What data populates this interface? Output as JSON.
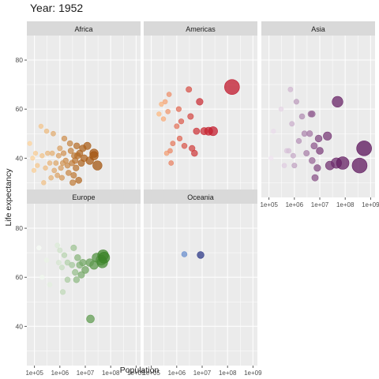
{
  "chart_data": {
    "type": "scatter",
    "title": "Year: 1952",
    "xlabel": "Population",
    "ylabel": "Life expectancy",
    "x_scale": "log10",
    "xlim": [
      50000,
      1500000000
    ],
    "ylim": [
      24,
      90
    ],
    "x_ticks": [
      100000,
      1000000,
      10000000,
      100000000,
      1000000000
    ],
    "x_tick_labels": [
      "1e+05",
      "1e+06",
      "1e+07",
      "1e+08",
      "1e+09"
    ],
    "y_ticks": [
      40,
      60,
      80
    ],
    "y_tick_labels": [
      "40",
      "60",
      "80"
    ],
    "grid": true,
    "legend": "none",
    "panel_background": "#ebebeb",
    "strip_background": "#d9d9d9",
    "facets": [
      {
        "name": "Africa",
        "light_color": "#fdd49e",
        "dark_color": "#a35510",
        "points": [
          {
            "x": 65000,
            "y": 46.0
          },
          {
            "x": 85000,
            "y": 40.0
          },
          {
            "x": 95000,
            "y": 35.0
          },
          {
            "x": 110000,
            "y": 42.0
          },
          {
            "x": 130000,
            "y": 37.0
          },
          {
            "x": 180000,
            "y": 53.0
          },
          {
            "x": 200000,
            "y": 41.0
          },
          {
            "x": 230000,
            "y": 30.0
          },
          {
            "x": 270000,
            "y": 36.0
          },
          {
            "x": 300000,
            "y": 51.0
          },
          {
            "x": 330000,
            "y": 42.0
          },
          {
            "x": 400000,
            "y": 38.0
          },
          {
            "x": 450000,
            "y": 32.0
          },
          {
            "x": 500000,
            "y": 42.0
          },
          {
            "x": 550000,
            "y": 50.0
          },
          {
            "x": 600000,
            "y": 35.0
          },
          {
            "x": 700000,
            "y": 38.0
          },
          {
            "x": 800000,
            "y": 33.0
          },
          {
            "x": 900000,
            "y": 41.0
          },
          {
            "x": 1000000,
            "y": 44.0
          },
          {
            "x": 1100000,
            "y": 36.0
          },
          {
            "x": 1200000,
            "y": 32.0
          },
          {
            "x": 1300000,
            "y": 38.0
          },
          {
            "x": 1400000,
            "y": 42.0
          },
          {
            "x": 1500000,
            "y": 48.0
          },
          {
            "x": 1700000,
            "y": 39.0
          },
          {
            "x": 2000000,
            "y": 37.0
          },
          {
            "x": 2200000,
            "y": 34.0
          },
          {
            "x": 2500000,
            "y": 46.0
          },
          {
            "x": 2700000,
            "y": 43.0
          },
          {
            "x": 3000000,
            "y": 38.0
          },
          {
            "x": 3200000,
            "y": 30.0
          },
          {
            "x": 3500000,
            "y": 33.0
          },
          {
            "x": 3700000,
            "y": 41.0
          },
          {
            "x": 4000000,
            "y": 39.0
          },
          {
            "x": 4300000,
            "y": 36.0
          },
          {
            "x": 4600000,
            "y": 45.0
          },
          {
            "x": 5000000,
            "y": 41.0
          },
          {
            "x": 5500000,
            "y": 31.0
          },
          {
            "x": 6000000,
            "y": 42.0
          },
          {
            "x": 7000000,
            "y": 38.0
          },
          {
            "x": 8000000,
            "y": 44.0
          },
          {
            "x": 9000000,
            "y": 40.0
          },
          {
            "x": 12000000,
            "y": 45.0
          },
          {
            "x": 15000000,
            "y": 39.0
          },
          {
            "x": 22000000,
            "y": 42.0
          },
          {
            "x": 22000000,
            "y": 41.0
          },
          {
            "x": 30000000,
            "y": 37.0
          }
        ]
      },
      {
        "name": "Americas",
        "light_color": "#fdbb84",
        "dark_color": "#c0172b",
        "points": [
          {
            "x": 200000,
            "y": 58.0
          },
          {
            "x": 250000,
            "y": 62.0
          },
          {
            "x": 300000,
            "y": 56.0
          },
          {
            "x": 350000,
            "y": 63.0
          },
          {
            "x": 400000,
            "y": 42.0
          },
          {
            "x": 450000,
            "y": 59.0
          },
          {
            "x": 500000,
            "y": 66.0
          },
          {
            "x": 550000,
            "y": 43.0
          },
          {
            "x": 600000,
            "y": 38.0
          },
          {
            "x": 700000,
            "y": 46.0
          },
          {
            "x": 1000000,
            "y": 53.0
          },
          {
            "x": 1200000,
            "y": 60.0
          },
          {
            "x": 1300000,
            "y": 48.0
          },
          {
            "x": 1500000,
            "y": 55.0
          },
          {
            "x": 2000000,
            "y": 45.0
          },
          {
            "x": 3000000,
            "y": 68.0
          },
          {
            "x": 3500000,
            "y": 57.0
          },
          {
            "x": 4000000,
            "y": 44.0
          },
          {
            "x": 5000000,
            "y": 42.0
          },
          {
            "x": 6000000,
            "y": 51.0
          },
          {
            "x": 8000000,
            "y": 63.0
          },
          {
            "x": 12000000,
            "y": 51.0
          },
          {
            "x": 18000000,
            "y": 51.0
          },
          {
            "x": 27000000,
            "y": 51.0
          },
          {
            "x": 150000000,
            "y": 69.0
          }
        ]
      },
      {
        "name": "Asia",
        "light_color": "#efe3f0",
        "dark_color": "#5a1159",
        "points": [
          {
            "x": 120000,
            "y": 40.0
          },
          {
            "x": 150000,
            "y": 51.0
          },
          {
            "x": 300000,
            "y": 60.0
          },
          {
            "x": 400000,
            "y": 37.0
          },
          {
            "x": 500000,
            "y": 43.0
          },
          {
            "x": 600000,
            "y": 43.0
          },
          {
            "x": 700000,
            "y": 68.0
          },
          {
            "x": 800000,
            "y": 54.0
          },
          {
            "x": 900000,
            "y": 41.0
          },
          {
            "x": 1000000,
            "y": 37.0
          },
          {
            "x": 1200000,
            "y": 63.0
          },
          {
            "x": 1500000,
            "y": 47.0
          },
          {
            "x": 2000000,
            "y": 57.0
          },
          {
            "x": 2500000,
            "y": 50.0
          },
          {
            "x": 3000000,
            "y": 42.0
          },
          {
            "x": 4000000,
            "y": 50.0
          },
          {
            "x": 4500000,
            "y": 58.0
          },
          {
            "x": 5000000,
            "y": 39.0
          },
          {
            "x": 5000000,
            "y": 58.0
          },
          {
            "x": 6000000,
            "y": 45.0
          },
          {
            "x": 6500000,
            "y": 32.0
          },
          {
            "x": 8000000,
            "y": 36.0
          },
          {
            "x": 9000000,
            "y": 48.0
          },
          {
            "x": 10000000,
            "y": 43.0
          },
          {
            "x": 20000000,
            "y": 49.0
          },
          {
            "x": 25000000,
            "y": 37.0
          },
          {
            "x": 45000000,
            "y": 38.0
          },
          {
            "x": 50000000,
            "y": 63.0
          },
          {
            "x": 80000000,
            "y": 38.0
          },
          {
            "x": 370000000,
            "y": 37.0
          },
          {
            "x": 556000000,
            "y": 44.0
          }
        ]
      },
      {
        "name": "Europe",
        "light_color": "#f7fcf5",
        "dark_color": "#3b8328",
        "points": [
          {
            "x": 150000,
            "y": 72.0
          },
          {
            "x": 200000,
            "y": 60.0
          },
          {
            "x": 300000,
            "y": 67.0
          },
          {
            "x": 400000,
            "y": 57.0
          },
          {
            "x": 800000,
            "y": 73.0
          },
          {
            "x": 900000,
            "y": 66.0
          },
          {
            "x": 1000000,
            "y": 71.0
          },
          {
            "x": 1200000,
            "y": 64.0
          },
          {
            "x": 1300000,
            "y": 54.0
          },
          {
            "x": 1500000,
            "y": 69.0
          },
          {
            "x": 2000000,
            "y": 66.0
          },
          {
            "x": 2000000,
            "y": 59.0
          },
          {
            "x": 3000000,
            "y": 65.0
          },
          {
            "x": 3500000,
            "y": 72.0
          },
          {
            "x": 4000000,
            "y": 62.0
          },
          {
            "x": 4500000,
            "y": 59.0
          },
          {
            "x": 5000000,
            "y": 68.0
          },
          {
            "x": 6000000,
            "y": 65.0
          },
          {
            "x": 7000000,
            "y": 61.0
          },
          {
            "x": 8000000,
            "y": 66.0
          },
          {
            "x": 10000000,
            "y": 63.0
          },
          {
            "x": 15000000,
            "y": 66.0
          },
          {
            "x": 16000000,
            "y": 43.0
          },
          {
            "x": 22000000,
            "y": 65.0
          },
          {
            "x": 28000000,
            "y": 68.0
          },
          {
            "x": 42000000,
            "y": 67.0
          },
          {
            "x": 47000000,
            "y": 66.0
          },
          {
            "x": 50000000,
            "y": 69.0
          },
          {
            "x": 55000000,
            "y": 68.0
          }
        ]
      },
      {
        "name": "Oceania",
        "light_color": "#6a8fce",
        "dark_color": "#2e3a87",
        "points": [
          {
            "x": 1990000,
            "y": 69.4
          },
          {
            "x": 8690000,
            "y": 69.1
          }
        ]
      }
    ]
  }
}
